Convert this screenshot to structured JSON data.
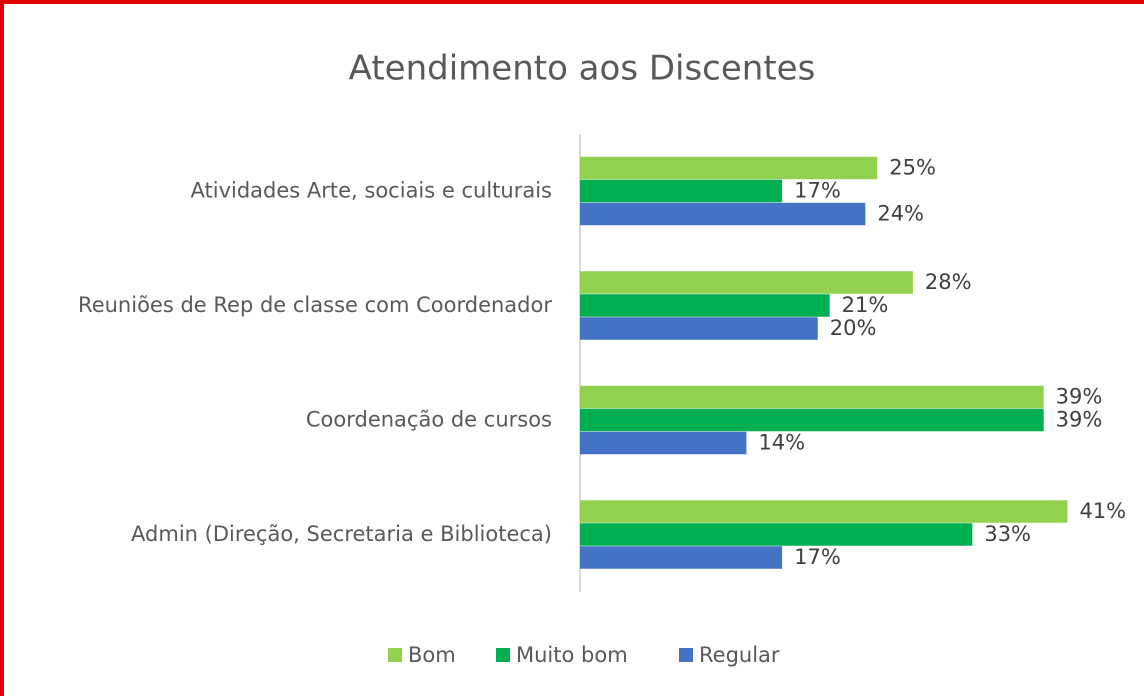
{
  "chart_data": {
    "type": "bar",
    "orientation": "horizontal",
    "title": "Atendimento aos Discentes",
    "categories": [
      "Atividades Arte, sociais e culturais",
      "Reuniões de Rep de classe com Coordenador",
      "Coordenação de cursos",
      "Admin (Direção, Secretaria e Biblioteca)"
    ],
    "series": [
      {
        "name": "Bom",
        "color": "#92d050",
        "values": [
          25,
          28,
          39,
          41
        ],
        "value_labels": [
          "25%",
          "28%",
          "39%",
          "41%"
        ]
      },
      {
        "name": "Muito bom",
        "color": "#00b050",
        "values": [
          17,
          21,
          39,
          33
        ],
        "value_labels": [
          "17%",
          "21%",
          "39%",
          "33%"
        ]
      },
      {
        "name": "Regular",
        "color": "#4472c4",
        "values": [
          24,
          20,
          14,
          17
        ],
        "value_labels": [
          "24%",
          "20%",
          "14%",
          "17%"
        ]
      }
    ],
    "xlim": [
      0,
      45
    ],
    "legend": "bottom"
  }
}
